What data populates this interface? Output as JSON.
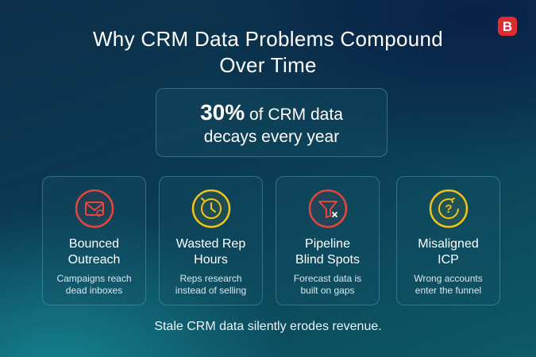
{
  "brand": {
    "logo_letter": "B",
    "logo_color": "#e02b30"
  },
  "title": {
    "line1": "Why CRM Data Problems Compound",
    "line2": "Over Time"
  },
  "stat": {
    "percent": "30%",
    "rest": "of CRM data",
    "line2": "decays every year"
  },
  "cards": [
    {
      "icon": "envelope-icon",
      "color": "#e8453c",
      "title1": "Bounced",
      "title2": "Outreach",
      "desc1": "Campaigns reach",
      "desc2": "dead inboxes"
    },
    {
      "icon": "clock-icon",
      "color": "#f2c418",
      "title1": "Wasted Rep",
      "title2": "Hours",
      "desc1": "Reps research",
      "desc2": "instead of selling"
    },
    {
      "icon": "funnel-icon",
      "color": "#e8453c",
      "title1": "Pipeline",
      "title2": "Blind Spots",
      "desc1": "Forecast data is",
      "desc2": "built on gaps"
    },
    {
      "icon": "question-icon",
      "color": "#f2c418",
      "title1": "Misaligned",
      "title2": "ICP",
      "desc1": "Wrong accounts",
      "desc2": "enter the funnel"
    }
  ],
  "footer": "Stale CRM data silently erodes revenue."
}
